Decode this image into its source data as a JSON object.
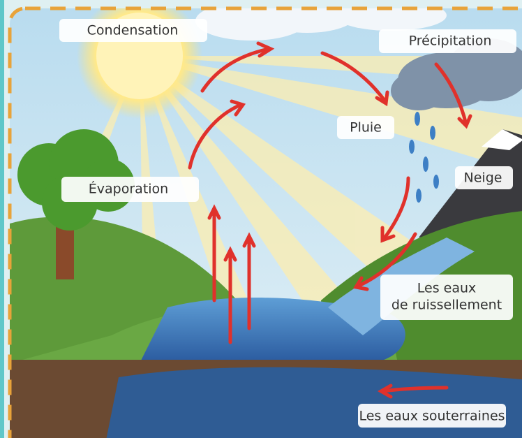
{
  "labels": [
    {
      "lines": [
        "Condensation"
      ]
    },
    {
      "lines": [
        "Précipitation"
      ]
    },
    {
      "lines": [
        "Pluie"
      ]
    },
    {
      "lines": [
        "Neige"
      ]
    },
    {
      "lines": [
        "Évaporation"
      ]
    },
    {
      "lines": [
        "Les eaux",
        "de ruissellement"
      ]
    },
    {
      "lines": [
        "Les eaux souterraines"
      ]
    }
  ]
}
